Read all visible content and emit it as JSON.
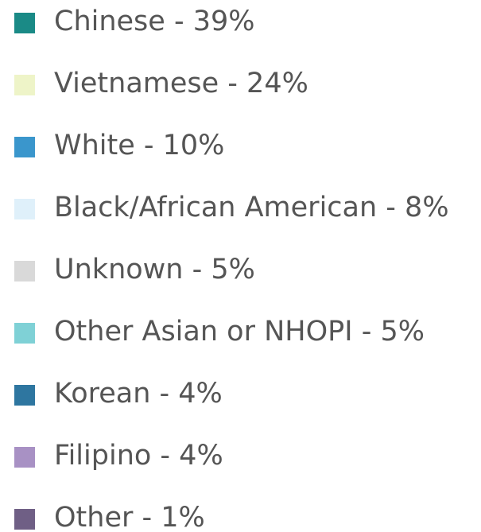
{
  "legend": {
    "items": [
      {
        "label": "Chinese - 39%",
        "color": "#1a8a86"
      },
      {
        "label": "Vietnamese - 24%",
        "color": "#eef4c8"
      },
      {
        "label": "White - 10%",
        "color": "#3a96cc"
      },
      {
        "label": "Black/African American - 8%",
        "color": "#dff0fa"
      },
      {
        "label": "Unknown - 5%",
        "color": "#d9d9d9"
      },
      {
        "label": "Other Asian or NHOPI - 5%",
        "color": "#7fd1d6"
      },
      {
        "label": "Korean - 4%",
        "color": "#2e76a0"
      },
      {
        "label": "Filipino - 4%",
        "color": "#a891c4"
      },
      {
        "label": "Other - 1%",
        "color": "#6f5f85"
      }
    ]
  }
}
